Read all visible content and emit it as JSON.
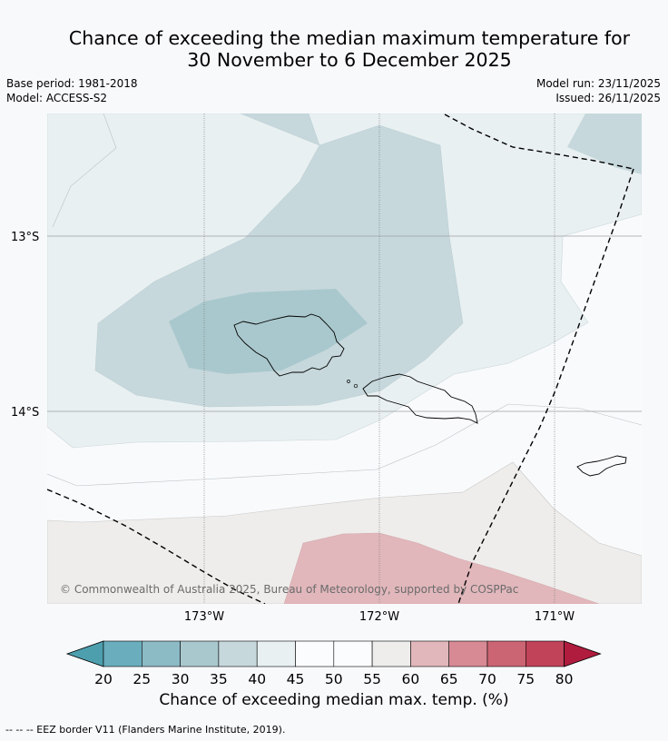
{
  "title": {
    "line1": "Chance of exceeding the median maximum temperature for",
    "line2": "30 November to 6 December 2025"
  },
  "meta": {
    "base_period": "Base period: 1981-2018",
    "model": "Model: ACCESS-S2",
    "model_run": "Model run: 23/11/2025",
    "issued": "Issued: 26/11/2025"
  },
  "map": {
    "lat_labels": [
      "13°S",
      "14°S"
    ],
    "lon_labels": [
      "173°W",
      "172°W",
      "171°W"
    ],
    "copyright": "© Commonwealth of Australia 2025, Bureau of Meteorology, supported by COSPPac"
  },
  "colorbar": {
    "ticks": [
      "20",
      "25",
      "30",
      "35",
      "40",
      "45",
      "50",
      "55",
      "60",
      "65",
      "70",
      "75",
      "80"
    ],
    "colors": {
      "below20": "#4d9fae",
      "20-25": "#6aaebd",
      "25-30": "#8cbac5",
      "30-35": "#a9c8cd",
      "35-40": "#c6d8dc",
      "40-45": "#e9f0f2",
      "45-50": "#fbfcfd",
      "50-55": "#fbfcfd",
      "55-60": "#eeedeb",
      "60-65": "#e1b7bb",
      "65-70": "#d78a94",
      "70-75": "#cc6573",
      "75-80": "#c0435a",
      "above80": "#b01c3e"
    },
    "title": "Chance of exceeding median max. temp. (%)"
  },
  "footnote": "--  --  -- EEZ border V11 (Flanders Marine Institute, 2019)."
}
